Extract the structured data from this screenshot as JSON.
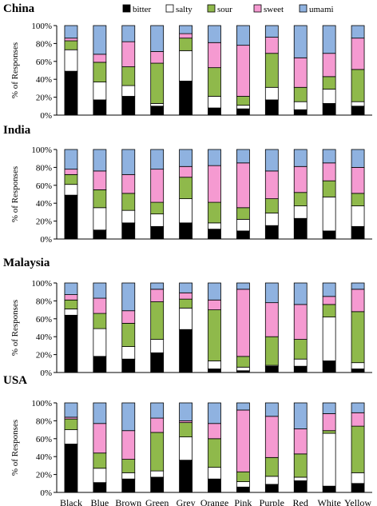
{
  "chart_data": {
    "type": "bar",
    "stacked": true,
    "categories": [
      "Black",
      "Blue",
      "Brown",
      "Green",
      "Grey",
      "Orange",
      "Pink",
      "Purple",
      "Red",
      "White",
      "Yellow"
    ],
    "legend": [
      {
        "name": "bitter",
        "color": "#000000"
      },
      {
        "name": "salty",
        "color": "#ffffff"
      },
      {
        "name": "sour",
        "color": "#8fb94b"
      },
      {
        "name": "sweet",
        "color": "#f59ad1"
      },
      {
        "name": "umami",
        "color": "#8fb2e0"
      }
    ],
    "ylabel": "% of Responses",
    "yticks": [
      "0%",
      "20%",
      "40%",
      "60%",
      "80%",
      "100%"
    ],
    "ylim": [
      0,
      100
    ],
    "panels": [
      {
        "title": "China",
        "values": [
          [
            49,
            24,
            10,
            3,
            14
          ],
          [
            17,
            20,
            22,
            9,
            32
          ],
          [
            21,
            12,
            21,
            28,
            18
          ],
          [
            10,
            3,
            45,
            13,
            29
          ],
          [
            38,
            34,
            14,
            5,
            9
          ],
          [
            8,
            13,
            32,
            28,
            19
          ],
          [
            7,
            4,
            10,
            57,
            22
          ],
          [
            17,
            14,
            38,
            18,
            13
          ],
          [
            6,
            9,
            16,
            33,
            36
          ],
          [
            13,
            16,
            14,
            26,
            31
          ],
          [
            10,
            5,
            36,
            35,
            14
          ]
        ]
      },
      {
        "title": "India",
        "values": [
          [
            49,
            12,
            11,
            6,
            22
          ],
          [
            10,
            25,
            20,
            21,
            24
          ],
          [
            18,
            14,
            19,
            21,
            28
          ],
          [
            14,
            14,
            13,
            37,
            22
          ],
          [
            18,
            27,
            24,
            12,
            19
          ],
          [
            11,
            7,
            23,
            41,
            18
          ],
          [
            9,
            13,
            13,
            50,
            15
          ],
          [
            15,
            14,
            16,
            31,
            24
          ],
          [
            23,
            14,
            15,
            29,
            19
          ],
          [
            9,
            38,
            18,
            20,
            15
          ],
          [
            14,
            23,
            14,
            29,
            20
          ]
        ]
      },
      {
        "title": "Malaysia",
        "values": [
          [
            64,
            7,
            10,
            6,
            13
          ],
          [
            18,
            31,
            17,
            17,
            17
          ],
          [
            15,
            14,
            26,
            14,
            31
          ],
          [
            22,
            15,
            42,
            14,
            7
          ],
          [
            48,
            24,
            10,
            7,
            11
          ],
          [
            4,
            9,
            57,
            11,
            19
          ],
          [
            2,
            4,
            12,
            75,
            7
          ],
          [
            7,
            1,
            32,
            38,
            22
          ],
          [
            7,
            8,
            22,
            39,
            24
          ],
          [
            13,
            49,
            14,
            9,
            15
          ],
          [
            4,
            7,
            57,
            25,
            7
          ]
        ]
      },
      {
        "title": "USA",
        "values": [
          [
            54,
            16,
            12,
            2,
            16
          ],
          [
            11,
            16,
            17,
            33,
            23
          ],
          [
            15,
            7,
            15,
            32,
            31
          ],
          [
            17,
            7,
            43,
            16,
            17
          ],
          [
            36,
            26,
            16,
            2,
            20
          ],
          [
            15,
            13,
            32,
            17,
            23
          ],
          [
            6,
            6,
            11,
            69,
            8
          ],
          [
            9,
            9,
            21,
            46,
            15
          ],
          [
            13,
            4,
            26,
            28,
            29
          ],
          [
            7,
            59,
            3,
            19,
            12
          ],
          [
            10,
            12,
            52,
            15,
            11
          ]
        ]
      }
    ]
  }
}
